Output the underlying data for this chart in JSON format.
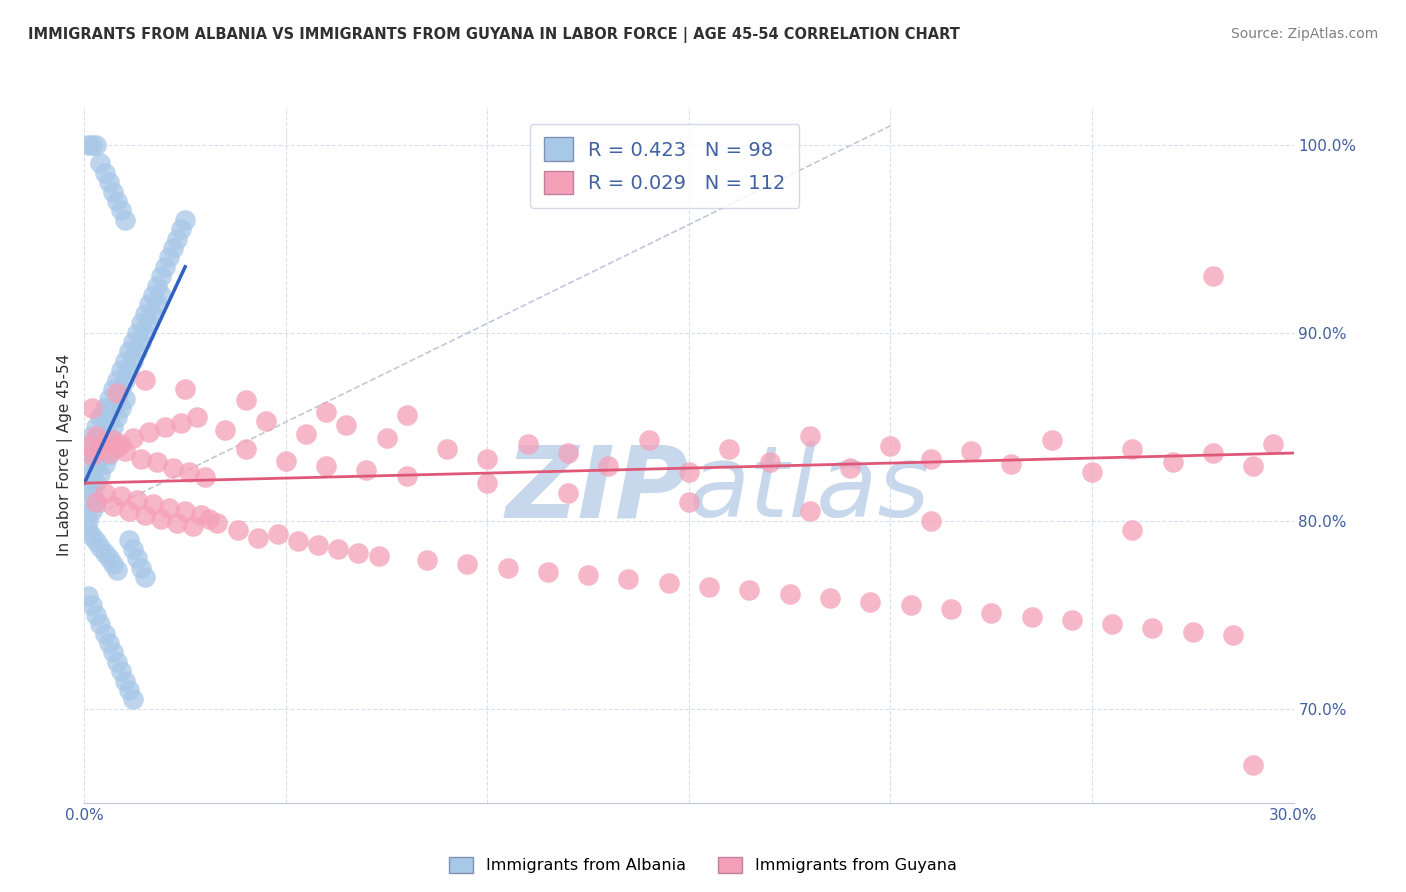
{
  "title": "IMMIGRANTS FROM ALBANIA VS IMMIGRANTS FROM GUYANA IN LABOR FORCE | AGE 45-54 CORRELATION CHART",
  "source": "Source: ZipAtlas.com",
  "ylabel": "In Labor Force | Age 45-54",
  "xlim": [
    0.0,
    0.3
  ],
  "ylim": [
    0.65,
    1.02
  ],
  "x_ticks": [
    0.0,
    0.05,
    0.1,
    0.15,
    0.2,
    0.25,
    0.3
  ],
  "y_ticks": [
    0.7,
    0.8,
    0.9,
    1.0
  ],
  "albania_R": 0.423,
  "albania_N": 98,
  "guyana_R": 0.029,
  "guyana_N": 112,
  "albania_color": "#A8C8E8",
  "guyana_color": "#F4A0B8",
  "albania_line_color": "#3060C0",
  "guyana_line_color": "#E05878",
  "ref_line_color": "#C0C8D8",
  "grid_color": "#D8E0F0",
  "tick_color": "#4060A0",
  "title_color": "#303030",
  "source_color": "#808080",
  "ylabel_color": "#303030",
  "watermark_color": "#C8D8EC",
  "legend_border_color": "#C8D0E0",
  "albania_scatter_x": [
    0.001,
    0.001,
    0.001,
    0.001,
    0.001,
    0.002,
    0.002,
    0.002,
    0.002,
    0.002,
    0.003,
    0.003,
    0.003,
    0.003,
    0.003,
    0.004,
    0.004,
    0.004,
    0.004,
    0.005,
    0.005,
    0.005,
    0.005,
    0.006,
    0.006,
    0.006,
    0.006,
    0.007,
    0.007,
    0.007,
    0.008,
    0.008,
    0.008,
    0.009,
    0.009,
    0.009,
    0.01,
    0.01,
    0.01,
    0.011,
    0.011,
    0.012,
    0.012,
    0.013,
    0.013,
    0.014,
    0.014,
    0.015,
    0.015,
    0.016,
    0.016,
    0.017,
    0.017,
    0.018,
    0.018,
    0.019,
    0.019,
    0.02,
    0.021,
    0.022,
    0.023,
    0.024,
    0.025,
    0.001,
    0.002,
    0.003,
    0.004,
    0.005,
    0.006,
    0.007,
    0.008,
    0.009,
    0.01,
    0.011,
    0.012,
    0.013,
    0.014,
    0.015,
    0.001,
    0.002,
    0.003,
    0.004,
    0.005,
    0.006,
    0.007,
    0.008,
    0.009,
    0.01,
    0.011,
    0.012,
    0.001,
    0.002,
    0.003,
    0.004,
    0.005,
    0.006,
    0.007,
    0.008
  ],
  "albania_scatter_y": [
    0.84,
    0.83,
    0.82,
    0.81,
    0.8,
    0.845,
    0.835,
    0.825,
    0.815,
    0.805,
    0.85,
    0.84,
    0.83,
    0.82,
    0.81,
    0.855,
    0.845,
    0.835,
    0.825,
    0.86,
    0.85,
    0.84,
    0.83,
    0.865,
    0.855,
    0.845,
    0.835,
    0.87,
    0.86,
    0.85,
    0.875,
    0.865,
    0.855,
    0.88,
    0.87,
    0.86,
    0.885,
    0.875,
    0.865,
    0.89,
    0.88,
    0.895,
    0.885,
    0.9,
    0.89,
    0.905,
    0.895,
    0.91,
    0.9,
    0.915,
    0.905,
    0.92,
    0.91,
    0.925,
    0.915,
    0.93,
    0.92,
    0.935,
    0.94,
    0.945,
    0.95,
    0.955,
    0.96,
    1.0,
    1.0,
    1.0,
    0.99,
    0.985,
    0.98,
    0.975,
    0.97,
    0.965,
    0.96,
    0.79,
    0.785,
    0.78,
    0.775,
    0.77,
    0.76,
    0.755,
    0.75,
    0.745,
    0.74,
    0.735,
    0.73,
    0.725,
    0.72,
    0.715,
    0.71,
    0.705,
    0.795,
    0.792,
    0.789,
    0.786,
    0.783,
    0.78,
    0.777,
    0.774
  ],
  "guyana_scatter_x": [
    0.001,
    0.002,
    0.003,
    0.004,
    0.005,
    0.006,
    0.007,
    0.008,
    0.009,
    0.01,
    0.012,
    0.014,
    0.016,
    0.018,
    0.02,
    0.022,
    0.024,
    0.026,
    0.028,
    0.03,
    0.035,
    0.04,
    0.045,
    0.05,
    0.055,
    0.06,
    0.065,
    0.07,
    0.075,
    0.08,
    0.09,
    0.1,
    0.11,
    0.12,
    0.13,
    0.14,
    0.15,
    0.16,
    0.17,
    0.18,
    0.19,
    0.2,
    0.21,
    0.22,
    0.23,
    0.24,
    0.25,
    0.26,
    0.27,
    0.28,
    0.29,
    0.295,
    0.003,
    0.005,
    0.007,
    0.009,
    0.011,
    0.013,
    0.015,
    0.017,
    0.019,
    0.021,
    0.023,
    0.025,
    0.027,
    0.029,
    0.031,
    0.033,
    0.038,
    0.043,
    0.048,
    0.053,
    0.058,
    0.063,
    0.068,
    0.073,
    0.085,
    0.095,
    0.105,
    0.115,
    0.125,
    0.135,
    0.145,
    0.155,
    0.165,
    0.175,
    0.185,
    0.195,
    0.205,
    0.215,
    0.225,
    0.235,
    0.245,
    0.255,
    0.265,
    0.275,
    0.285,
    0.002,
    0.008,
    0.015,
    0.025,
    0.04,
    0.06,
    0.08,
    0.1,
    0.12,
    0.15,
    0.18,
    0.21,
    0.26,
    0.28,
    0.29
  ],
  "guyana_scatter_y": [
    0.84,
    0.835,
    0.845,
    0.838,
    0.842,
    0.836,
    0.843,
    0.839,
    0.841,
    0.837,
    0.844,
    0.833,
    0.847,
    0.831,
    0.85,
    0.828,
    0.852,
    0.826,
    0.855,
    0.823,
    0.848,
    0.838,
    0.853,
    0.832,
    0.846,
    0.829,
    0.851,
    0.827,
    0.844,
    0.824,
    0.838,
    0.833,
    0.841,
    0.836,
    0.829,
    0.843,
    0.826,
    0.838,
    0.831,
    0.845,
    0.828,
    0.84,
    0.833,
    0.837,
    0.83,
    0.843,
    0.826,
    0.838,
    0.831,
    0.836,
    0.829,
    0.841,
    0.81,
    0.815,
    0.808,
    0.813,
    0.805,
    0.811,
    0.803,
    0.809,
    0.801,
    0.807,
    0.799,
    0.805,
    0.797,
    0.803,
    0.801,
    0.799,
    0.795,
    0.791,
    0.793,
    0.789,
    0.787,
    0.785,
    0.783,
    0.781,
    0.779,
    0.777,
    0.775,
    0.773,
    0.771,
    0.769,
    0.767,
    0.765,
    0.763,
    0.761,
    0.759,
    0.757,
    0.755,
    0.753,
    0.751,
    0.749,
    0.747,
    0.745,
    0.743,
    0.741,
    0.739,
    0.86,
    0.868,
    0.875,
    0.87,
    0.864,
    0.858,
    0.856,
    0.82,
    0.815,
    0.81,
    0.805,
    0.8,
    0.795,
    0.93,
    0.67
  ]
}
